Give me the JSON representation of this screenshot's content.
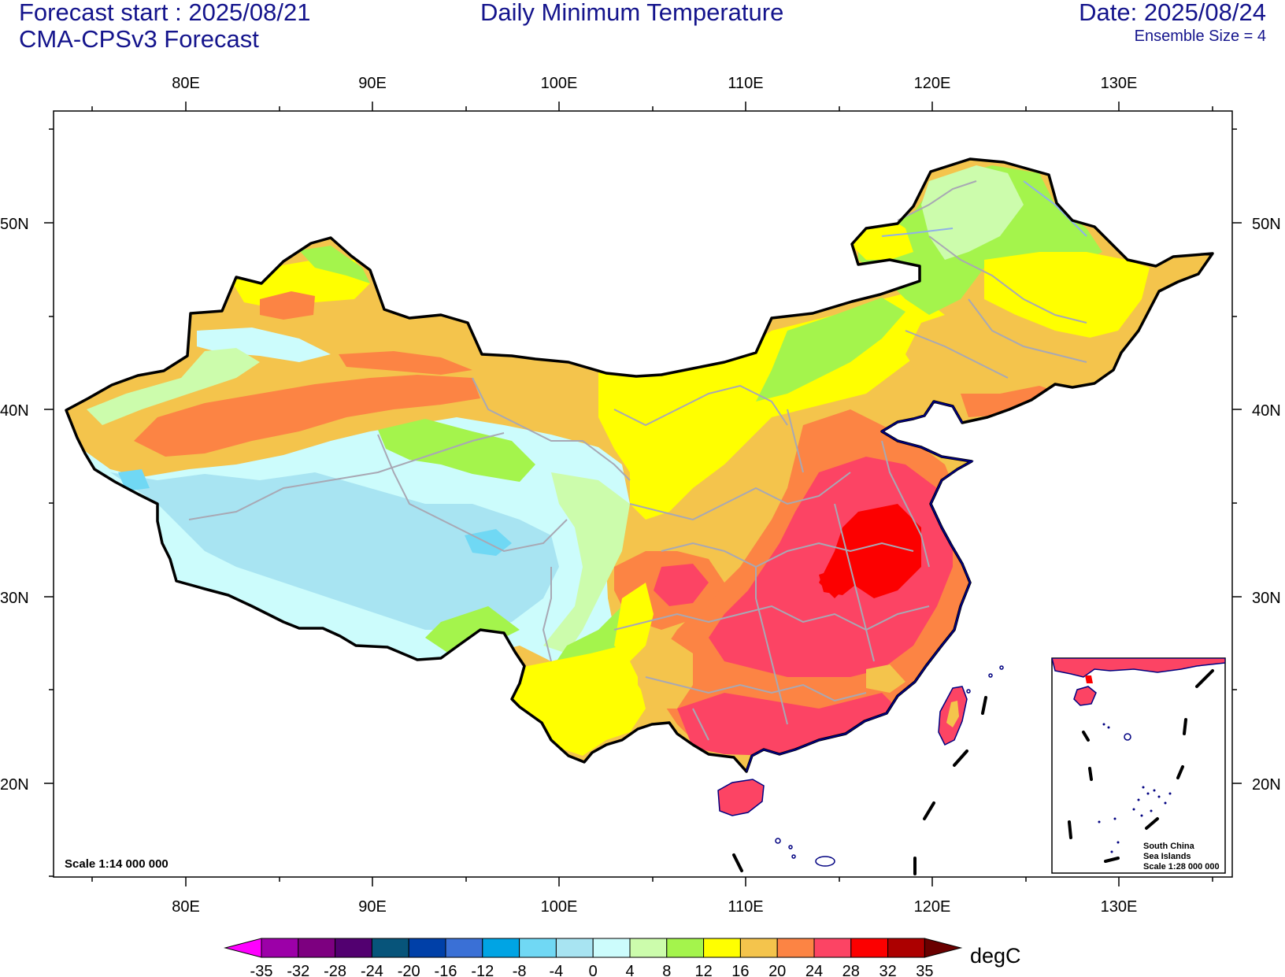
{
  "header": {
    "forecast_start": "Forecast start : 2025/08/21",
    "model": "CMA-CPSv3 Forecast",
    "title": "Daily Minimum Temperature",
    "date": "Date: 2025/08/24",
    "ensemble": "Ensemble Size = 4"
  },
  "map": {
    "lon_labels": [
      "80E",
      "90E",
      "100E",
      "110E",
      "120E",
      "130E"
    ],
    "lat_labels": [
      "50N",
      "40N",
      "30N",
      "20N"
    ],
    "scale_note": "Scale 1:14 000 000",
    "inset_lines": [
      "South China",
      "Sea Islands",
      "Scale 1:28 000 000"
    ]
  },
  "colorbar": {
    "unit": "degC",
    "levels": [
      "-35",
      "-32",
      "-28",
      "-24",
      "-20",
      "-16",
      "-12",
      "-8",
      "-4",
      "0",
      "4",
      "8",
      "12",
      "16",
      "20",
      "24",
      "28",
      "32",
      "35"
    ],
    "colors": {
      "below": "#ff00ff",
      "bins": [
        "#9c00a8",
        "#7d0080",
        "#520070",
        "#07547a",
        "#0040a8",
        "#3a70d6",
        "#00a4e4",
        "#70d8f4",
        "#a8e4f2",
        "#ccfcfc",
        "#ccfcac",
        "#a4f44c",
        "#ffff00",
        "#f4c44c",
        "#fc8444",
        "#fc4464",
        "#fc0000",
        "#ac0000"
      ],
      "above": "#6a0000"
    }
  },
  "regions": {
    "fill_colors": {
      "cold_plateau": "#ccfcfc",
      "plateau_cool": "#a8e4f2",
      "plateau_cold_spot": "#70d8f4",
      "mild_8_12": "#ccfcac",
      "mild_12_16": "#a4f44c",
      "warm_16_20": "#ffff00",
      "warm_20_24": "#f4c44c",
      "hot_24_28": "#fc8444",
      "hot_28_32": "#fc4464",
      "hot_32_35": "#fc0000"
    }
  }
}
